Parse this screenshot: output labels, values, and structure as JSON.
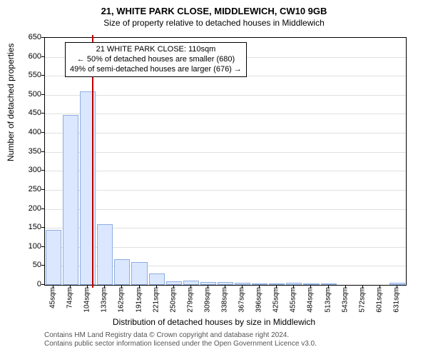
{
  "title": "21, WHITE PARK CLOSE, MIDDLEWICH, CW10 9GB",
  "subtitle": "Size of property relative to detached houses in Middlewich",
  "ylabel": "Number of detached properties",
  "xlabel": "Distribution of detached houses by size in Middlewich",
  "credit_line1": "Contains HM Land Registry data © Crown copyright and database right 2024.",
  "credit_line2": "Contains public sector information licensed under the Open Government Licence v3.0.",
  "chart": {
    "type": "histogram",
    "ymin": 0,
    "ymax": 650,
    "ytick_step": 50,
    "grid_color": "#e0e0e0",
    "background_color": "#ffffff",
    "bar_color": "#dbe7ff",
    "bar_border_color": "#8faee0",
    "marker_color": "#c00000",
    "marker_value": 110,
    "x_categories": [
      "45sqm",
      "74sqm",
      "104sqm",
      "133sqm",
      "162sqm",
      "191sqm",
      "221sqm",
      "250sqm",
      "279sqm",
      "309sqm",
      "338sqm",
      "367sqm",
      "396sqm",
      "425sqm",
      "455sqm",
      "484sqm",
      "513sqm",
      "543sqm",
      "572sqm",
      "601sqm",
      "631sqm"
    ],
    "x_numeric": [
      45,
      74,
      104,
      133,
      162,
      191,
      221,
      250,
      279,
      309,
      338,
      367,
      396,
      425,
      455,
      484,
      513,
      543,
      572,
      601,
      631
    ],
    "values": [
      145,
      448,
      510,
      160,
      68,
      60,
      30,
      10,
      12,
      8,
      8,
      5,
      4,
      4,
      5,
      2,
      1,
      0,
      0,
      0,
      5
    ],
    "title_fontsize": 13,
    "subtitle_fontsize": 12,
    "label_fontsize": 12,
    "tick_fontsize": 11
  },
  "annotation": {
    "line1": "21 WHITE PARK CLOSE: 110sqm",
    "line2": "← 50% of detached houses are smaller (680)",
    "line3": "49% of semi-detached houses are larger (676) →"
  }
}
